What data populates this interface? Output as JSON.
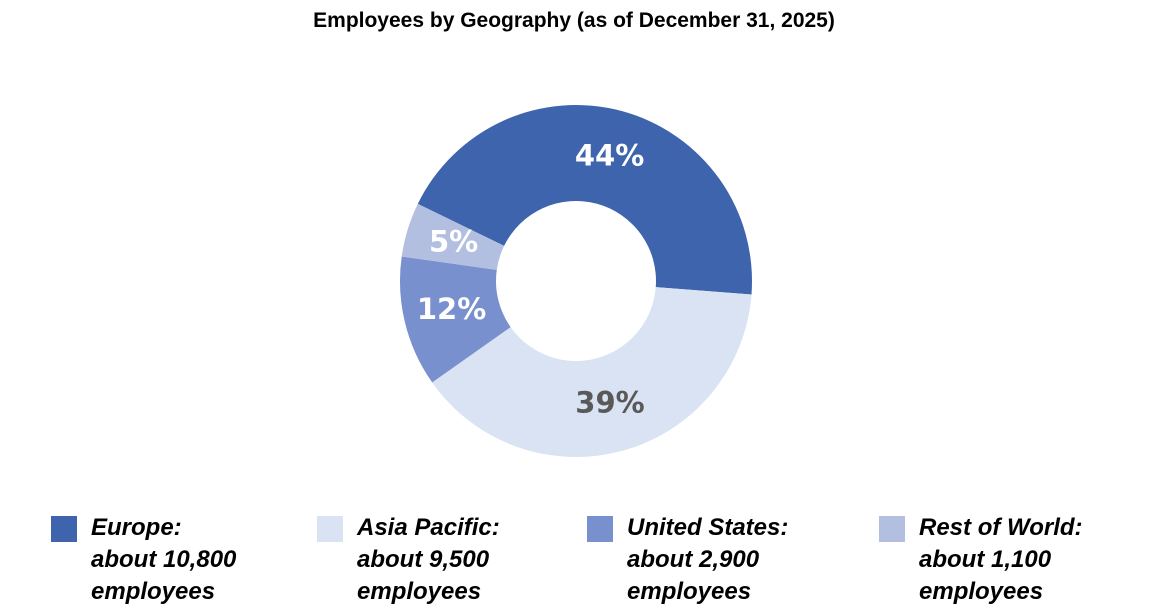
{
  "chart_data": {
    "type": "donut",
    "title": "Employees by Geography (as of December 31, 2025)",
    "categories": [
      "Europe:",
      "Asia Pacific:",
      "United States:",
      "Rest of World:"
    ],
    "legend_notes": [
      "about 10,800 employees",
      "about 9,500 employees",
      "about 2,900 employees",
      "about 1,100 employees"
    ],
    "values": [
      44,
      39,
      12,
      5
    ],
    "value_labels": [
      "44%",
      "39%",
      "12%",
      "5%"
    ],
    "colors": [
      "#3d64ad",
      "#dae3f3",
      "#7990cf",
      "#b3bfe0"
    ],
    "label_colors": [
      "#ffffff",
      "#595959",
      "#ffffff",
      "#ffffff"
    ],
    "legend": "bottom"
  }
}
